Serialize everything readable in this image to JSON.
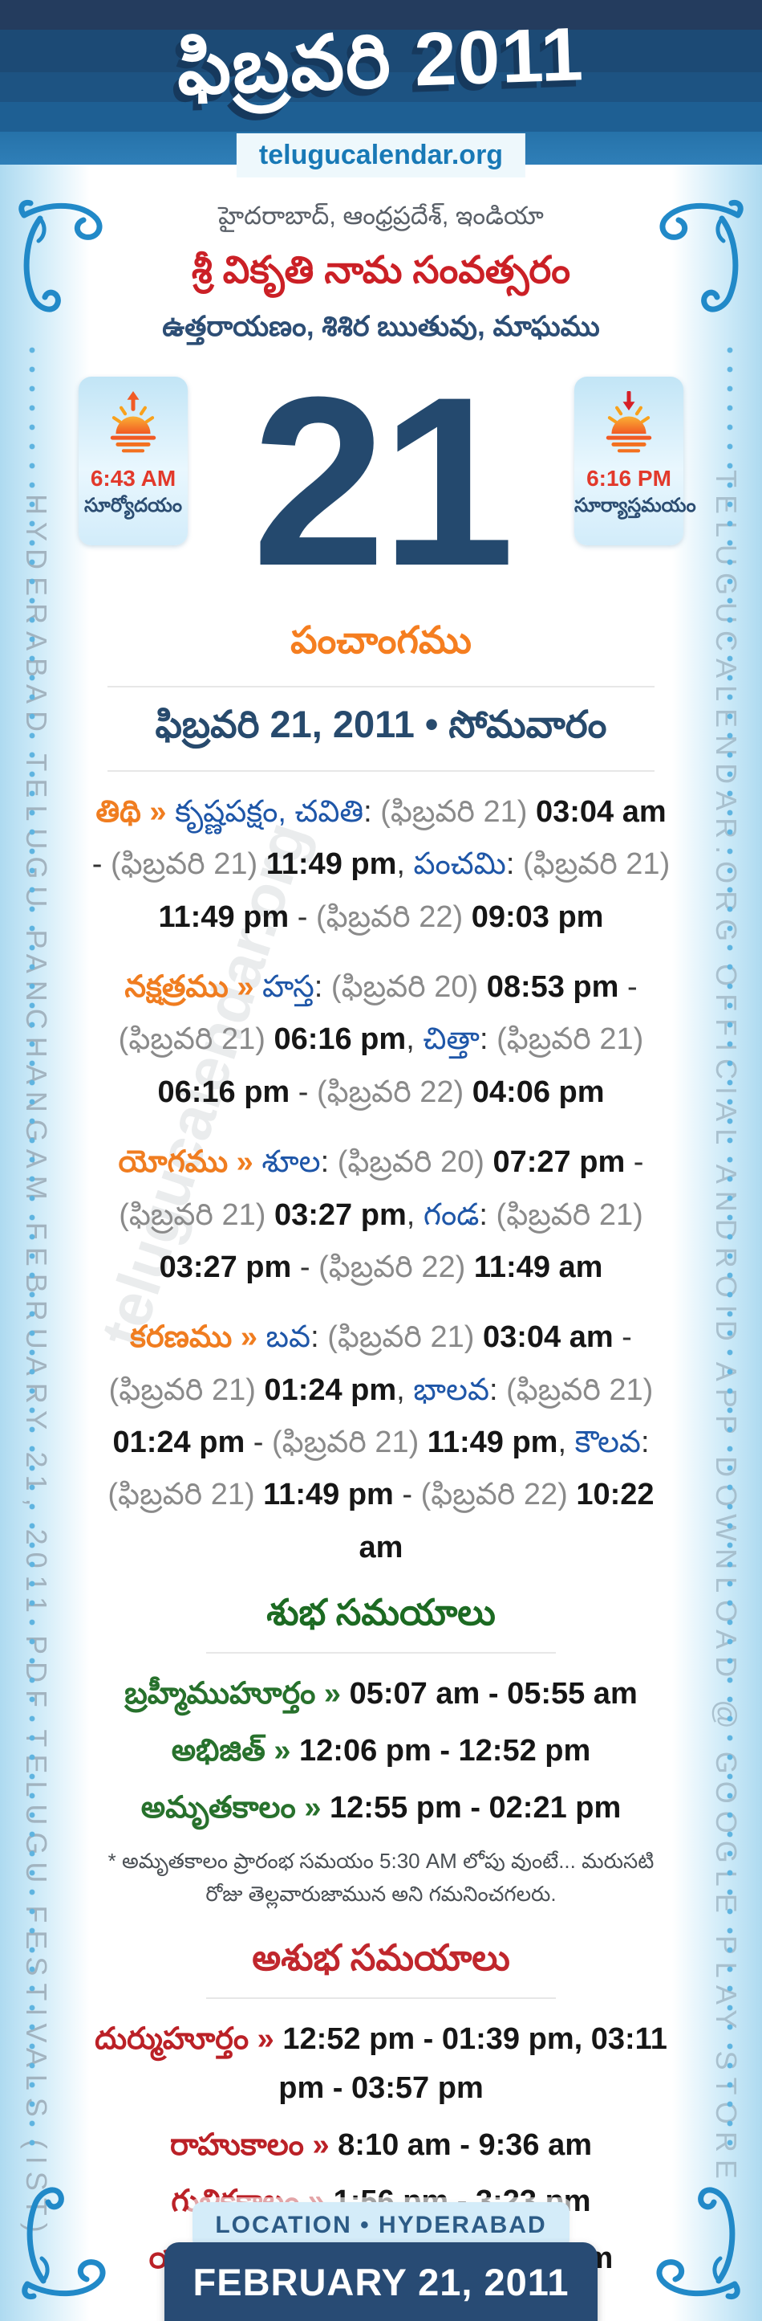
{
  "header": {
    "title": "ఫిబ్రవరి 2011",
    "site": "telugucalendar.org"
  },
  "intro": {
    "location_line": "హైదరాబాద్, ఆంధ్రప్రదేశ్, ఇండియా",
    "year_line": "శ్రీ వికృతి నామ సంవత్సరం",
    "ayana_line": "ఉత్తరాయణం, శిశిర ఋతువు, మాఘము"
  },
  "day": {
    "number": "21",
    "sunrise_time": "6:43 AM",
    "sunrise_label": "సూర్యోదయం",
    "sunset_time": "6:16 PM",
    "sunset_label": "సూర్యాస్తమయం"
  },
  "panchangam": {
    "section_title": "పంచాంగము",
    "date_line": "ఫిబ్రవరి 21, 2011 • సోమవారం",
    "rows": [
      {
        "segments": [
          {
            "t": "label",
            "v": "తిథి » "
          },
          {
            "t": "term",
            "v": "కృష్ణపక్షం, చవితి"
          },
          {
            "t": "plain",
            "v": ": "
          },
          {
            "t": "paren",
            "v": "(ఫిబ్రవరి 21) "
          },
          {
            "t": "time",
            "v": "03:04 am"
          },
          {
            "t": "plain",
            "v": " - "
          },
          {
            "t": "paren",
            "v": "(ఫిబ్రవరి 21) "
          },
          {
            "t": "time",
            "v": "11:49 pm"
          },
          {
            "t": "plain",
            "v": ", "
          },
          {
            "t": "term",
            "v": "పంచమి"
          },
          {
            "t": "plain",
            "v": ": "
          },
          {
            "t": "paren",
            "v": "(ఫిబ్రవరి 21) "
          },
          {
            "t": "time",
            "v": "11:49 pm"
          },
          {
            "t": "plain",
            "v": " - "
          },
          {
            "t": "paren",
            "v": "(ఫిబ్రవరి 22) "
          },
          {
            "t": "time",
            "v": "09:03 pm"
          }
        ]
      },
      {
        "segments": [
          {
            "t": "label",
            "v": "నక్షత్రము » "
          },
          {
            "t": "term",
            "v": "హస్త"
          },
          {
            "t": "plain",
            "v": ": "
          },
          {
            "t": "paren",
            "v": "(ఫిబ్రవరి 20) "
          },
          {
            "t": "time",
            "v": "08:53 pm"
          },
          {
            "t": "plain",
            "v": " - "
          },
          {
            "t": "paren",
            "v": "(ఫిబ్రవరి 21) "
          },
          {
            "t": "time",
            "v": "06:16 pm"
          },
          {
            "t": "plain",
            "v": ", "
          },
          {
            "t": "term",
            "v": "చిత్తా"
          },
          {
            "t": "plain",
            "v": ": "
          },
          {
            "t": "paren",
            "v": "(ఫిబ్రవరి 21) "
          },
          {
            "t": "time",
            "v": "06:16 pm"
          },
          {
            "t": "plain",
            "v": " - "
          },
          {
            "t": "paren",
            "v": "(ఫిబ్రవరి 22) "
          },
          {
            "t": "time",
            "v": "04:06 pm"
          }
        ]
      },
      {
        "segments": [
          {
            "t": "label",
            "v": "యోగము » "
          },
          {
            "t": "term",
            "v": "శూల"
          },
          {
            "t": "plain",
            "v": ": "
          },
          {
            "t": "paren",
            "v": "(ఫిబ్రవరి 20) "
          },
          {
            "t": "time",
            "v": "07:27 pm"
          },
          {
            "t": "plain",
            "v": " - "
          },
          {
            "t": "paren",
            "v": "(ఫిబ్రవరి 21) "
          },
          {
            "t": "time",
            "v": "03:27 pm"
          },
          {
            "t": "plain",
            "v": ", "
          },
          {
            "t": "term",
            "v": "గండ"
          },
          {
            "t": "plain",
            "v": ": "
          },
          {
            "t": "paren",
            "v": "(ఫిబ్రవరి 21) "
          },
          {
            "t": "time",
            "v": "03:27 pm"
          },
          {
            "t": "plain",
            "v": " - "
          },
          {
            "t": "paren",
            "v": "(ఫిబ్రవరి 22) "
          },
          {
            "t": "time",
            "v": "11:49 am"
          }
        ]
      },
      {
        "segments": [
          {
            "t": "label",
            "v": "కరణము » "
          },
          {
            "t": "term",
            "v": "బవ"
          },
          {
            "t": "plain",
            "v": ": "
          },
          {
            "t": "paren",
            "v": "(ఫిబ్రవరి 21) "
          },
          {
            "t": "time",
            "v": "03:04 am"
          },
          {
            "t": "plain",
            "v": " - "
          },
          {
            "t": "paren",
            "v": "(ఫిబ్రవరి 21) "
          },
          {
            "t": "time",
            "v": "01:24 pm"
          },
          {
            "t": "plain",
            "v": ", "
          },
          {
            "t": "term",
            "v": "భాలవ"
          },
          {
            "t": "plain",
            "v": ": "
          },
          {
            "t": "paren",
            "v": "(ఫిబ్రవరి 21) "
          },
          {
            "t": "time",
            "v": "01:24 pm"
          },
          {
            "t": "plain",
            "v": " - "
          },
          {
            "t": "paren",
            "v": "(ఫిబ్రవరి 21) "
          },
          {
            "t": "time",
            "v": "11:49 pm"
          },
          {
            "t": "plain",
            "v": ", "
          },
          {
            "t": "term",
            "v": "కౌలవ"
          },
          {
            "t": "plain",
            "v": ": "
          },
          {
            "t": "paren",
            "v": "(ఫిబ్రవరి 21) "
          },
          {
            "t": "time",
            "v": "11:49 pm"
          },
          {
            "t": "plain",
            "v": " - "
          },
          {
            "t": "paren",
            "v": "(ఫిబ్రవరి 22) "
          },
          {
            "t": "time",
            "v": "10:22 am"
          }
        ]
      }
    ]
  },
  "shubha": {
    "heading": "శుభ సమయాలు",
    "items": [
      {
        "label": "బ్రహ్మీముహూర్తం",
        "value": "05:07 am - 05:55 am"
      },
      {
        "label": "అభిజిత్",
        "value": "12:06 pm - 12:52 pm"
      },
      {
        "label": "అమృతకాలం",
        "value": "12:55 pm - 02:21 pm"
      }
    ],
    "note": "* అమృతకాలం ప్రారంభ సమయం 5:30 AM లోపు వుంటే... మరుసటి రోజు తెల్లవారుజామున అని గమనించగలరు."
  },
  "ashubha": {
    "heading": "అశుభ సమయాలు",
    "items": [
      {
        "label": "దుర్ముహూర్తం",
        "value": "12:52 pm - 01:39 pm, 03:11 pm - 03:57 pm"
      },
      {
        "label": "రాహుకాలం",
        "value": "8:10 am - 9:36 am"
      },
      {
        "label": "గుళికకాలం",
        "value": "1:56 pm - 3:23 pm"
      },
      {
        "label": "యమగండం",
        "value": "11:03 am - 12:29 pm"
      }
    ]
  },
  "footer": {
    "location_chip": "LOCATION • HYDERABAD",
    "date_card": "FEBRUARY 21, 2011"
  },
  "sidebars": {
    "left_text": "HYDERABAD TELUGU PANCHANGAM FEBRUARY 21, 2011 PDF TELUGU FESTIVALS (IST)",
    "right_text": "TELUGUCALENDAR.ORG OFFICIAL ANDROID APP DOWNLOAD @ GOOGLE PLAY STORE"
  },
  "watermark": "telugucalendar.org",
  "colors": {
    "accent_orange": "#f57e20",
    "term_blue": "#1e56a8",
    "heading_green": "#1c6a22",
    "heading_red": "#c0272d",
    "navy": "#24496e",
    "banner_blue": "#1d4a75",
    "site_link_blue": "#1879b6",
    "sun_time_red": "#e2392b",
    "side_strip_blue": "#aedaf0"
  }
}
